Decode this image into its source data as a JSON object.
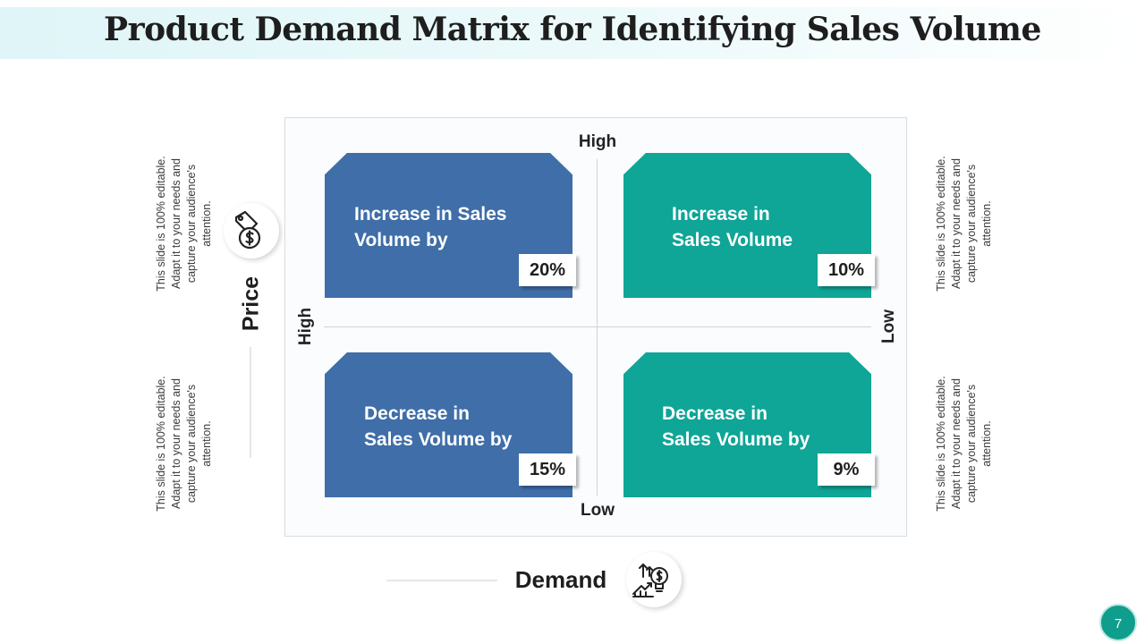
{
  "slide": {
    "title": "Product Demand Matrix for Identifying Sales Volume",
    "page_number": "7"
  },
  "axes": {
    "y_title": "Price",
    "x_title": "Demand",
    "top": "High",
    "bottom": "Low",
    "left": "High",
    "right": "Low"
  },
  "quadrants": [
    {
      "text": "Increase in Sales\nVolume by",
      "value": "20%",
      "color": "#3f6ea8"
    },
    {
      "text": "Increase in\nSales Volume",
      "value": "10%",
      "color": "#0fa597"
    },
    {
      "text": "Decrease in\nSales Volume by",
      "value": "15%",
      "color": "#3f6ea8"
    },
    {
      "text": "Decrease in\nSales Volume by",
      "value": "9%",
      "color": "#0fa597"
    }
  ],
  "side_notes": {
    "left_top": "This slide is 100% editable. Adapt it to your needs and capture your audience's attention.",
    "left_bottom": "This slide is 100% editable. Adapt it to your needs and capture your audience's attention.",
    "right_top": "This slide is 100% editable. Adapt it to your needs and capture your audience's attention.",
    "right_bottom": "This slide is 100% editable. Adapt it to your needs and capture your audience's attention."
  },
  "icons": {
    "price": "price-tag-dollar-icon",
    "demand": "growth-idea-bulb-icon"
  }
}
